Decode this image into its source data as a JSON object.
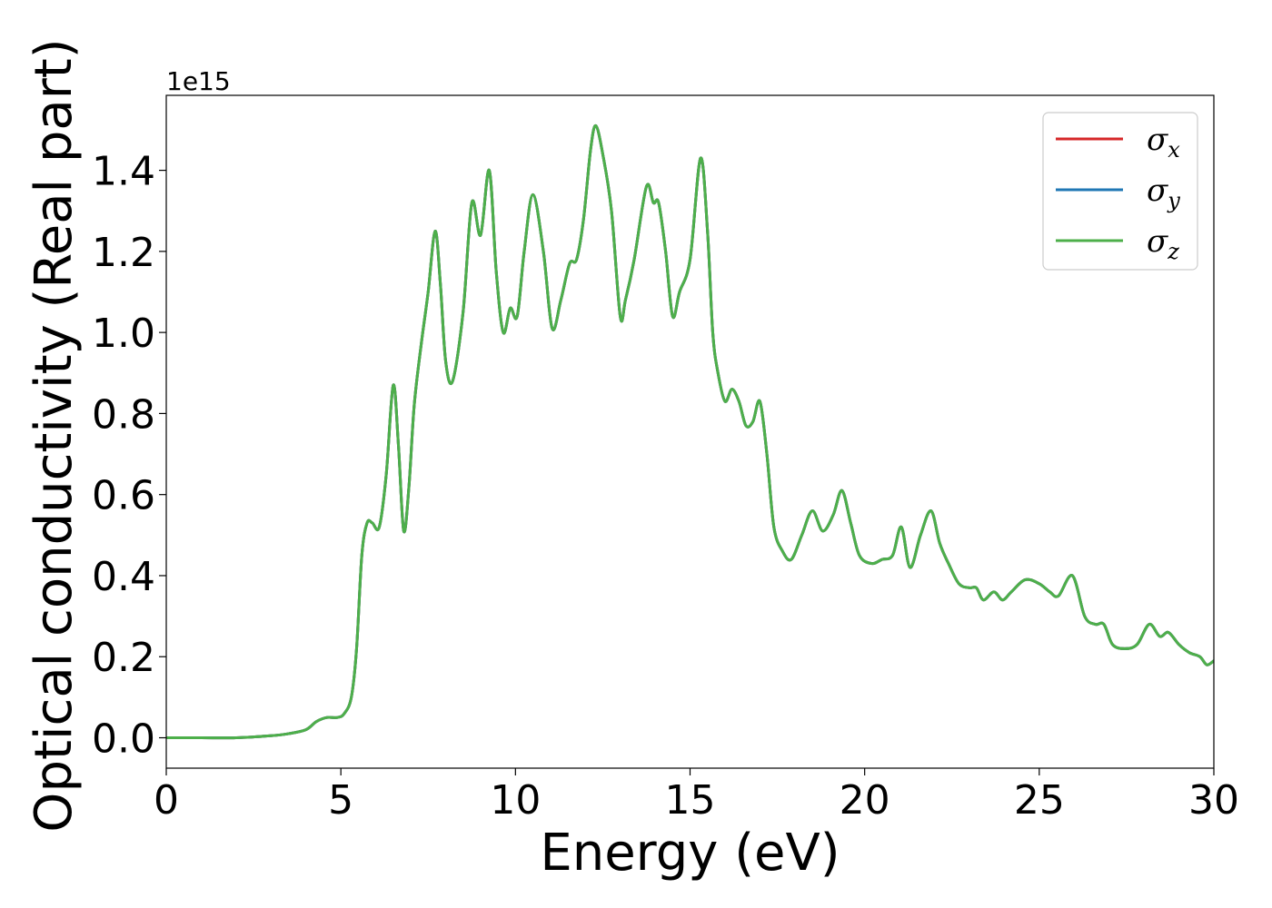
{
  "chart_data": {
    "type": "line",
    "title": "",
    "xlabel": "Energy (eV)",
    "ylabel": "Optical conductivity (Real part)",
    "y_offset_label": "1e15",
    "xlim": [
      0,
      30
    ],
    "ylim": [
      -0.075,
      1.585
    ],
    "x_ticks": [
      0,
      5,
      10,
      15,
      20,
      25,
      30
    ],
    "x_tick_labels": [
      "0",
      "5",
      "10",
      "15",
      "20",
      "25",
      "30"
    ],
    "y_ticks": [
      0.0,
      0.2,
      0.4,
      0.6,
      0.8,
      1.0,
      1.2,
      1.4
    ],
    "y_tick_labels": [
      "0.0",
      "0.2",
      "0.4",
      "0.6",
      "0.8",
      "1.0",
      "1.2",
      "1.4"
    ],
    "grid": false,
    "legend_position": "top-right",
    "x": [
      0,
      1,
      2,
      3,
      3.5,
      4.0,
      4.3,
      4.6,
      4.9,
      5.1,
      5.3,
      5.45,
      5.6,
      5.75,
      5.9,
      6.1,
      6.3,
      6.5,
      6.65,
      6.8,
      6.95,
      7.1,
      7.3,
      7.5,
      7.7,
      7.85,
      8.0,
      8.2,
      8.5,
      8.75,
      9.0,
      9.25,
      9.45,
      9.65,
      9.85,
      10.05,
      10.25,
      10.5,
      10.8,
      11.05,
      11.3,
      11.55,
      11.75,
      11.95,
      12.15,
      12.3,
      12.5,
      12.75,
      13.0,
      13.15,
      13.4,
      13.75,
      13.95,
      14.1,
      14.3,
      14.5,
      14.7,
      15.0,
      15.3,
      15.5,
      15.65,
      15.8,
      16.0,
      16.2,
      16.4,
      16.6,
      16.8,
      17.0,
      17.2,
      17.4,
      17.65,
      17.9,
      18.2,
      18.5,
      18.8,
      19.1,
      19.35,
      19.6,
      19.85,
      20.2,
      20.5,
      20.8,
      21.05,
      21.3,
      21.6,
      21.9,
      22.15,
      22.4,
      22.7,
      23.0,
      23.2,
      23.4,
      23.7,
      23.95,
      24.2,
      24.6,
      25.0,
      25.3,
      25.55,
      25.95,
      26.3,
      26.6,
      26.85,
      27.1,
      27.45,
      27.8,
      28.15,
      28.45,
      28.7,
      29.0,
      29.3,
      29.6,
      29.8,
      30.0
    ],
    "series": [
      {
        "name": "σx",
        "color": "#d62728",
        "y": [
          0.0,
          0.0,
          0.0,
          0.005,
          0.01,
          0.02,
          0.04,
          0.05,
          0.05,
          0.06,
          0.1,
          0.22,
          0.45,
          0.53,
          0.53,
          0.52,
          0.65,
          0.87,
          0.72,
          0.51,
          0.62,
          0.82,
          0.97,
          1.1,
          1.25,
          1.12,
          0.93,
          0.88,
          1.05,
          1.32,
          1.24,
          1.4,
          1.15,
          1.0,
          1.06,
          1.04,
          1.2,
          1.34,
          1.2,
          1.01,
          1.08,
          1.17,
          1.18,
          1.28,
          1.45,
          1.51,
          1.44,
          1.3,
          1.04,
          1.08,
          1.18,
          1.36,
          1.32,
          1.32,
          1.2,
          1.04,
          1.1,
          1.18,
          1.43,
          1.25,
          1.0,
          0.9,
          0.83,
          0.86,
          0.83,
          0.77,
          0.78,
          0.83,
          0.7,
          0.52,
          0.46,
          0.44,
          0.5,
          0.56,
          0.51,
          0.55,
          0.61,
          0.53,
          0.45,
          0.43,
          0.44,
          0.45,
          0.52,
          0.42,
          0.5,
          0.56,
          0.48,
          0.43,
          0.38,
          0.37,
          0.37,
          0.34,
          0.36,
          0.34,
          0.36,
          0.39,
          0.38,
          0.36,
          0.35,
          0.4,
          0.3,
          0.28,
          0.28,
          0.23,
          0.22,
          0.23,
          0.28,
          0.25,
          0.26,
          0.23,
          0.21,
          0.2,
          0.18,
          0.19
        ]
      },
      {
        "name": "σy",
        "color": "#1f77b4",
        "y": [
          0.0,
          0.0,
          0.0,
          0.005,
          0.01,
          0.02,
          0.04,
          0.05,
          0.05,
          0.06,
          0.1,
          0.22,
          0.45,
          0.53,
          0.53,
          0.52,
          0.65,
          0.87,
          0.72,
          0.51,
          0.62,
          0.82,
          0.97,
          1.1,
          1.25,
          1.12,
          0.93,
          0.88,
          1.05,
          1.32,
          1.24,
          1.4,
          1.15,
          1.0,
          1.06,
          1.04,
          1.2,
          1.34,
          1.2,
          1.01,
          1.08,
          1.17,
          1.18,
          1.28,
          1.45,
          1.51,
          1.44,
          1.3,
          1.04,
          1.08,
          1.18,
          1.36,
          1.32,
          1.32,
          1.2,
          1.04,
          1.1,
          1.18,
          1.43,
          1.25,
          1.0,
          0.9,
          0.83,
          0.86,
          0.83,
          0.77,
          0.78,
          0.83,
          0.7,
          0.52,
          0.46,
          0.44,
          0.5,
          0.56,
          0.51,
          0.55,
          0.61,
          0.53,
          0.45,
          0.43,
          0.44,
          0.45,
          0.52,
          0.42,
          0.5,
          0.56,
          0.48,
          0.43,
          0.38,
          0.37,
          0.37,
          0.34,
          0.36,
          0.34,
          0.36,
          0.39,
          0.38,
          0.36,
          0.35,
          0.4,
          0.3,
          0.28,
          0.28,
          0.23,
          0.22,
          0.23,
          0.28,
          0.25,
          0.26,
          0.23,
          0.21,
          0.2,
          0.18,
          0.19
        ]
      },
      {
        "name": "σz",
        "color": "#4daf4a",
        "y": [
          0.0,
          0.0,
          0.0,
          0.005,
          0.01,
          0.02,
          0.04,
          0.05,
          0.05,
          0.06,
          0.1,
          0.22,
          0.45,
          0.53,
          0.53,
          0.52,
          0.65,
          0.87,
          0.72,
          0.51,
          0.62,
          0.82,
          0.97,
          1.1,
          1.25,
          1.12,
          0.93,
          0.88,
          1.05,
          1.32,
          1.24,
          1.4,
          1.15,
          1.0,
          1.06,
          1.04,
          1.2,
          1.34,
          1.2,
          1.01,
          1.08,
          1.17,
          1.18,
          1.28,
          1.45,
          1.51,
          1.44,
          1.3,
          1.04,
          1.08,
          1.18,
          1.36,
          1.32,
          1.32,
          1.2,
          1.04,
          1.1,
          1.18,
          1.43,
          1.25,
          1.0,
          0.9,
          0.83,
          0.86,
          0.83,
          0.77,
          0.78,
          0.83,
          0.7,
          0.52,
          0.46,
          0.44,
          0.5,
          0.56,
          0.51,
          0.55,
          0.61,
          0.53,
          0.45,
          0.43,
          0.44,
          0.45,
          0.52,
          0.42,
          0.5,
          0.56,
          0.48,
          0.43,
          0.38,
          0.37,
          0.37,
          0.34,
          0.36,
          0.34,
          0.36,
          0.39,
          0.38,
          0.36,
          0.35,
          0.4,
          0.3,
          0.28,
          0.28,
          0.23,
          0.22,
          0.23,
          0.28,
          0.25,
          0.26,
          0.23,
          0.21,
          0.2,
          0.18,
          0.19
        ]
      }
    ],
    "legend": [
      {
        "symbol": "σ",
        "sub": "x",
        "color": "#d62728"
      },
      {
        "symbol": "σ",
        "sub": "y",
        "color": "#1f77b4"
      },
      {
        "symbol": "σ",
        "sub": "z",
        "color": "#4daf4a"
      }
    ]
  }
}
